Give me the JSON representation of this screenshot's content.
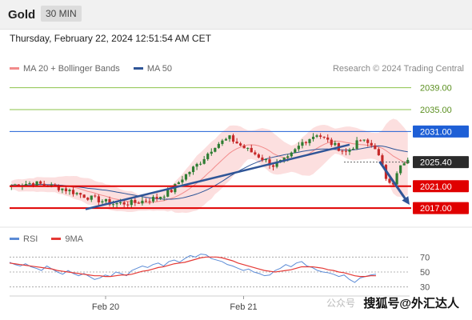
{
  "header": {
    "instrument": "Gold",
    "timeframe": "30 MIN"
  },
  "timestamp": "Thursday, February 22, 2024 12:51:54 AM CET",
  "legend": [
    {
      "label": "MA 20 + Bollinger Bands",
      "color": "#f28b8b"
    },
    {
      "label": "MA 50",
      "color": "#2f5597"
    }
  ],
  "credit": "Research © 2024 Trading Central",
  "rsi_legend": [
    {
      "label": "RSI",
      "color": "#5b8bd6"
    },
    {
      "label": "9MA",
      "color": "#e53935"
    }
  ],
  "watermark": "搜狐号@外汇达人",
  "watermark_faint": "公众号",
  "chart_data": {
    "type": "candlestick",
    "price_axis": {
      "min": 2013.8,
      "max": 2041.0
    },
    "levels": [
      {
        "value": 2039.0,
        "label": "2039.00",
        "kind": "target"
      },
      {
        "value": 2035.0,
        "label": "2035.00",
        "kind": "target"
      },
      {
        "value": 2031.0,
        "label": "2031.00",
        "kind": "resistance"
      },
      {
        "value": 2025.4,
        "label": "2025.40",
        "kind": "last"
      },
      {
        "value": 2021.0,
        "label": "2021.00",
        "kind": "support"
      },
      {
        "value": 2017.0,
        "label": "2017.00",
        "kind": "support"
      }
    ],
    "x_ticks": [
      "Feb 20",
      "Feb 21"
    ],
    "trendlines": [
      {
        "from": [
          0.19,
          2016.8
        ],
        "to": [
          0.85,
          2028.6
        ]
      }
    ],
    "arrow": {
      "from": [
        0.925,
        2025.5
      ],
      "to": [
        1.0,
        2017.6
      ]
    },
    "rsi": {
      "range": [
        20,
        80
      ],
      "ticks": [
        70,
        50,
        30
      ],
      "rsi_values": [
        63,
        60,
        58,
        61,
        57,
        55,
        52,
        58,
        54,
        50,
        47,
        52,
        48,
        45,
        48,
        44,
        40,
        42,
        46,
        44,
        50,
        48,
        45,
        52,
        55,
        58,
        56,
        60,
        62,
        58,
        64,
        66,
        63,
        68,
        72,
        70,
        74,
        73,
        68,
        66,
        64,
        60,
        58,
        55,
        52,
        54,
        50,
        48,
        45,
        46,
        52,
        55,
        60,
        57,
        62,
        64,
        58,
        56,
        52,
        50,
        49,
        47,
        44,
        46,
        40,
        36,
        42,
        44,
        46,
        47
      ],
      "ma_values": [
        62,
        61,
        60,
        59,
        58,
        57,
        56,
        55,
        54,
        52,
        51,
        50,
        49,
        48,
        47,
        46,
        45,
        45,
        44,
        44,
        45,
        46,
        46,
        47,
        49,
        51,
        52,
        54,
        56,
        57,
        59,
        61,
        62,
        63,
        65,
        67,
        69,
        70,
        70,
        70,
        69,
        67,
        65,
        62,
        60,
        58,
        56,
        54,
        52,
        51,
        50,
        51,
        52,
        53,
        55,
        57,
        57,
        57,
        56,
        55,
        53,
        52,
        50,
        49,
        47,
        45,
        44,
        44,
        45,
        45
      ]
    }
  }
}
